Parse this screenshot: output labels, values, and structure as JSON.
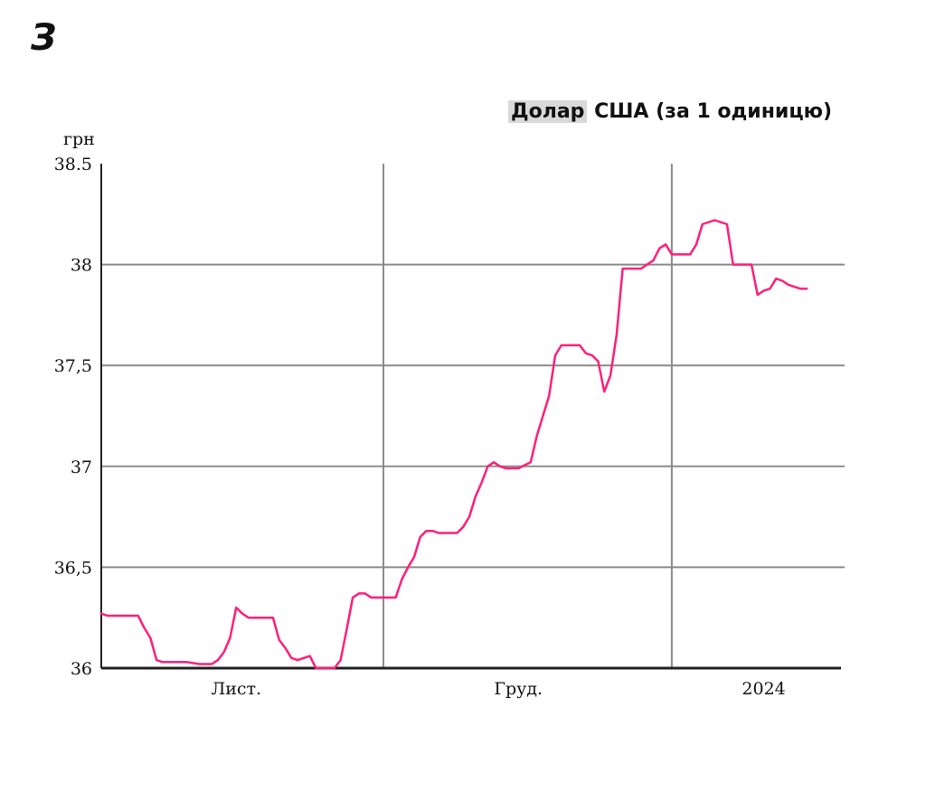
{
  "logo": "З",
  "title_highlight": "Долар",
  "title_rest": "США (за 1 одиницю)",
  "unit_label": "грн",
  "chart_data": {
    "type": "line",
    "title": "Долар США (за 1 одиницю)",
    "ylabel": "грн",
    "xlabel": "",
    "ylim": [
      36,
      38.5
    ],
    "yticks": [
      {
        "value": 36,
        "label": "36"
      },
      {
        "value": 36.5,
        "label": "36,5"
      },
      {
        "value": 37,
        "label": "37"
      },
      {
        "value": 37.5,
        "label": "37,5"
      },
      {
        "value": 38,
        "label": "38"
      },
      {
        "value": 38.5,
        "label": "38.5"
      }
    ],
    "xticks": [
      {
        "label": "Лист.",
        "x": 22
      },
      {
        "label": "Груд.",
        "x": 68
      },
      {
        "label": "2024",
        "x": 108
      }
    ],
    "xlim": [
      0,
      120
    ],
    "month_dividers": [
      46,
      93
    ],
    "grid": true,
    "line_color": "#ff1f7a",
    "series": [
      {
        "x": [
          0,
          1,
          2,
          4,
          6,
          7,
          8,
          9,
          10,
          12,
          14,
          16,
          18,
          19,
          20,
          21,
          22,
          23,
          24,
          26,
          28,
          29,
          30,
          31,
          32,
          33,
          34,
          35,
          36,
          37,
          38,
          39,
          40,
          41,
          42,
          43,
          44,
          45,
          46,
          48,
          49,
          50,
          51,
          52,
          53,
          54,
          55,
          56,
          58,
          59,
          60,
          61,
          62,
          63,
          64,
          65,
          66,
          67,
          68,
          70,
          71,
          72,
          73,
          74,
          75,
          76,
          78,
          79,
          80,
          81,
          82,
          83,
          84,
          85,
          86,
          88,
          89,
          90,
          91,
          92,
          93,
          94,
          95,
          96,
          97,
          98,
          100,
          102,
          103,
          104,
          105,
          106,
          107,
          108,
          109,
          110,
          111,
          112,
          113,
          114,
          115
        ],
        "y": [
          36.27,
          36.26,
          36.26,
          36.26,
          36.26,
          36.2,
          36.15,
          36.04,
          36.03,
          36.03,
          36.03,
          36.02,
          36.02,
          36.04,
          36.08,
          36.15,
          36.3,
          36.27,
          36.25,
          36.25,
          36.25,
          36.14,
          36.1,
          36.05,
          36.04,
          36.05,
          36.06,
          36.0,
          36.0,
          36.0,
          36.0,
          36.04,
          36.19,
          36.35,
          36.37,
          36.37,
          36.35,
          36.35,
          36.35,
          36.35,
          36.44,
          36.5,
          36.55,
          36.65,
          36.68,
          36.68,
          36.67,
          36.67,
          36.67,
          36.7,
          36.75,
          36.85,
          36.92,
          37.0,
          37.02,
          37.0,
          36.99,
          36.99,
          36.99,
          37.02,
          37.15,
          37.25,
          37.35,
          37.55,
          37.6,
          37.6,
          37.6,
          37.56,
          37.55,
          37.52,
          37.37,
          37.45,
          37.65,
          37.98,
          37.98,
          37.98,
          38.0,
          38.02,
          38.08,
          38.1,
          38.05,
          38.05,
          38.05,
          38.05,
          38.1,
          38.2,
          38.22,
          38.2,
          38.0,
          38.0,
          38.0,
          38.0,
          37.85,
          37.87,
          37.88,
          37.93,
          37.92,
          37.9,
          37.89,
          37.88,
          37.88
        ]
      }
    ]
  }
}
